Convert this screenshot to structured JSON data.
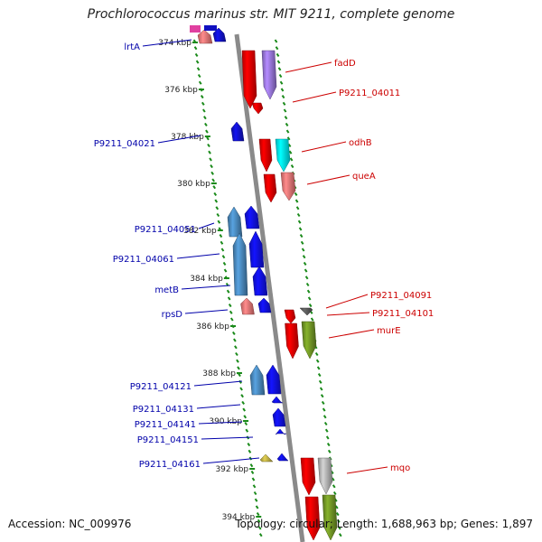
{
  "title": "Prochlorococcus marinus str. MIT 9211, complete genome",
  "footer": {
    "accession_label": "Accession: NC_009976",
    "summary_label": "Topology: circular; Length: 1,688,963 bp; Genes: 1,897"
  },
  "colors": {
    "backbone": "#8a8a8a",
    "tick": "#1a8a1a",
    "forward_label": "#cc0000",
    "reverse_label": "#0000aa"
  },
  "scale_ticks": [
    "374 kbp",
    "376 kbp",
    "378 kbp",
    "380 kbp",
    "382 kbp",
    "384 kbp",
    "386 kbp",
    "388 kbp",
    "390 kbp",
    "392 kbp",
    "394 kbp"
  ],
  "genes_forward": [
    {
      "name": "fadD",
      "color": "#e00000"
    },
    {
      "name": "P9211_04011",
      "color": "#9070d0"
    },
    {
      "name": "odhB",
      "color": "#00e0e8"
    },
    {
      "name": "queA",
      "color": "#e07070"
    },
    {
      "name": "P9211_04091",
      "color": "#555555"
    },
    {
      "name": "P9211_04101",
      "color": "#e00000"
    },
    {
      "name": "murE",
      "color": "#6b8e23"
    },
    {
      "name": "mqo",
      "color": "#aaaaaa"
    }
  ],
  "genes_reverse": [
    {
      "name": "lrtA",
      "color": "#e07070"
    },
    {
      "name": "P9211_04021",
      "color": "#1010c0"
    },
    {
      "name": "P9211_04051",
      "color": "#4682b4"
    },
    {
      "name": "P9211_04061",
      "color": "#4682b4"
    },
    {
      "name": "metB",
      "color": "#1010e0"
    },
    {
      "name": "rpsD",
      "color": "#e07070"
    },
    {
      "name": "P9211_04121",
      "color": "#4682b4"
    },
    {
      "name": "P9211_04131",
      "color": "#1010e0"
    },
    {
      "name": "P9211_04141",
      "color": "#1010e0"
    },
    {
      "name": "P9211_04151",
      "color": "#1010e0"
    },
    {
      "name": "P9211_04161",
      "color": "#b5a642"
    }
  ]
}
